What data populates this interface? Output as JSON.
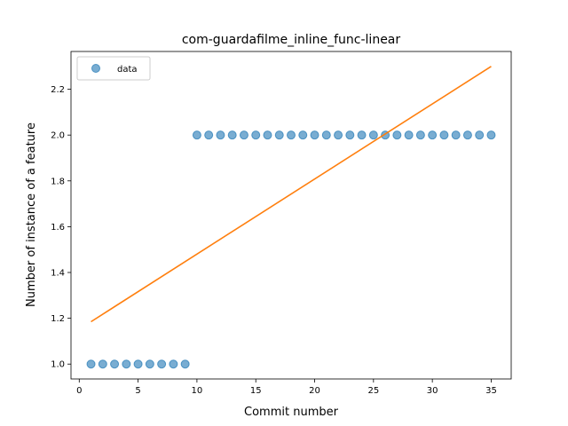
{
  "chart_data": {
    "type": "scatter",
    "title": "com-guardafilme_inline_func-linear",
    "xlabel": "Commit number",
    "ylabel": "Number of instance of a feature",
    "xlim": [
      -0.7,
      36.7
    ],
    "ylim": [
      0.935,
      2.365
    ],
    "x_ticks": [
      0,
      5,
      10,
      15,
      20,
      25,
      30,
      35
    ],
    "y_ticks": [
      1.0,
      1.2,
      1.4,
      1.6,
      1.8,
      2.0,
      2.2
    ],
    "legend": {
      "placement": "upper-left",
      "entries": [
        "data"
      ]
    },
    "series": [
      {
        "name": "data",
        "kind": "points",
        "color": "#1f77b4",
        "x": [
          1,
          2,
          3,
          4,
          5,
          6,
          7,
          8,
          9,
          10,
          11,
          12,
          13,
          14,
          15,
          16,
          17,
          18,
          19,
          20,
          21,
          22,
          23,
          24,
          25,
          26,
          27,
          28,
          29,
          30,
          31,
          32,
          33,
          34,
          35
        ],
        "y": [
          1,
          1,
          1,
          1,
          1,
          1,
          1,
          1,
          1,
          2,
          2,
          2,
          2,
          2,
          2,
          2,
          2,
          2,
          2,
          2,
          2,
          2,
          2,
          2,
          2,
          2,
          2,
          2,
          2,
          2,
          2,
          2,
          2,
          2,
          2
        ]
      },
      {
        "kind": "line",
        "color": "#ff7f0e",
        "x": [
          1,
          35
        ],
        "y": [
          1.185,
          2.3
        ]
      }
    ]
  }
}
